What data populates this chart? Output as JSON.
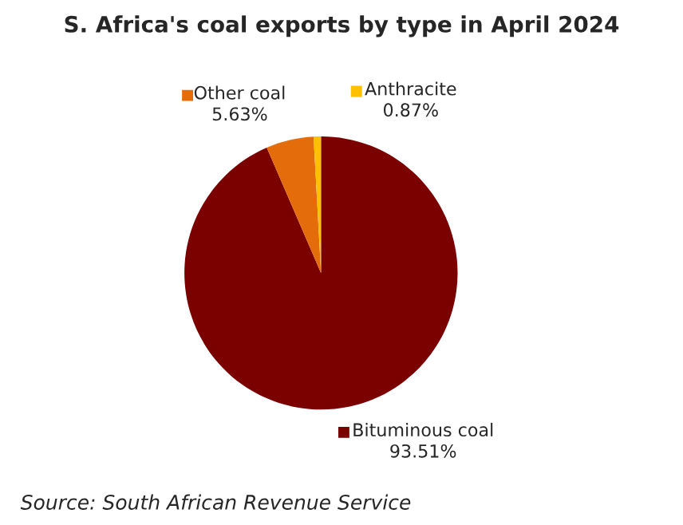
{
  "chart_data": {
    "type": "pie",
    "title": "S. Africa's coal exports by type in April 2024",
    "categories": [
      "Bituminous coal",
      "Other coal",
      "Anthracite"
    ],
    "values": [
      93.51,
      5.63,
      0.87
    ],
    "value_labels": [
      "93.51%",
      "5.63%",
      "0.87%"
    ],
    "colors": [
      "#7b0000",
      "#e46c0a",
      "#ffc000"
    ],
    "legend": "top",
    "annotations": [
      "Source: South African Revenue Service"
    ]
  }
}
